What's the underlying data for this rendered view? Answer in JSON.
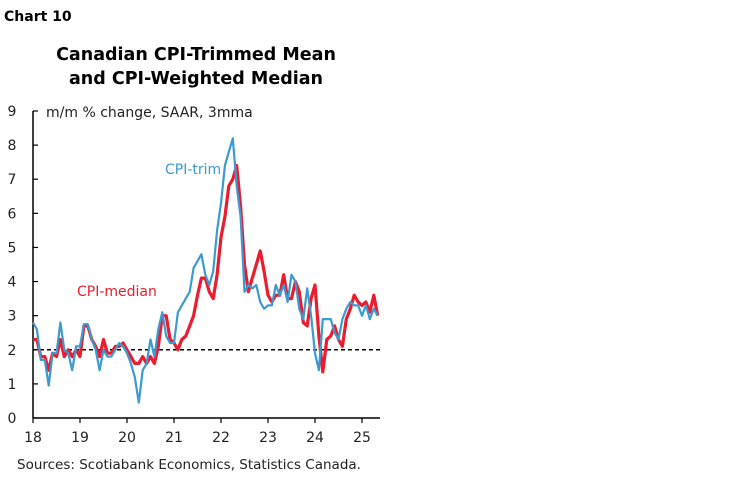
{
  "header": {
    "chart_number": "Chart 10"
  },
  "chart_data": {
    "type": "line",
    "title": "Canadian CPI-Trimmed Mean",
    "subtitle": "and CPI-Weighted Median",
    "ylabel": "m/m % change, SAAR, 3mma",
    "xlabel": "",
    "source": "Sources: Scotiabank Economics, Statistics Canada.",
    "frequency": "monthly",
    "x_start": "2018-01",
    "ylim": [
      0,
      9
    ],
    "yticks": [
      "0",
      "1",
      "2",
      "3",
      "4",
      "5",
      "6",
      "7",
      "8",
      "9"
    ],
    "xticks": [
      "18",
      "19",
      "20",
      "21",
      "22",
      "23",
      "24",
      "25"
    ],
    "reference_line": {
      "y": 2,
      "style": "dashed",
      "color": "#000000"
    },
    "grid": false,
    "series": [
      {
        "name": "CPI-trim",
        "color": "#3b9bd1",
        "values": [
          2.8,
          2.6,
          1.7,
          1.7,
          0.95,
          1.9,
          1.9,
          2.8,
          2.0,
          1.9,
          1.4,
          2.1,
          2.1,
          2.75,
          2.75,
          2.3,
          2.0,
          1.4,
          2.0,
          1.8,
          1.8,
          2.0,
          2.2,
          2.1,
          1.9,
          1.6,
          1.2,
          0.45,
          1.4,
          1.6,
          2.3,
          1.8,
          2.6,
          3.1,
          2.4,
          2.2,
          2.2,
          3.1,
          3.3,
          3.5,
          3.7,
          4.4,
          4.6,
          4.8,
          4.2,
          3.9,
          4.3,
          5.5,
          6.3,
          7.4,
          7.8,
          8.2,
          6.8,
          5.9,
          3.7,
          3.9,
          3.8,
          3.9,
          3.4,
          3.2,
          3.3,
          3.3,
          3.9,
          3.6,
          3.9,
          3.4,
          4.2,
          4.0,
          3.2,
          2.9,
          3.8,
          3.0,
          1.9,
          1.4,
          2.9,
          2.9,
          2.9,
          2.5,
          2.3,
          2.9,
          3.2,
          3.4,
          3.3,
          3.3,
          3.0,
          3.3,
          2.9,
          3.2,
          3.0
        ]
      },
      {
        "name": "CPI-median",
        "color": "#ec1c2e",
        "values": [
          2.3,
          2.3,
          1.8,
          1.8,
          1.4,
          1.9,
          1.8,
          2.3,
          1.8,
          2.0,
          1.8,
          2.0,
          1.8,
          2.7,
          2.7,
          2.3,
          2.1,
          1.8,
          2.3,
          1.9,
          1.9,
          2.1,
          2.1,
          2.2,
          2.0,
          1.8,
          1.6,
          1.6,
          1.8,
          1.6,
          1.8,
          1.6,
          2.1,
          3.0,
          3.0,
          2.3,
          2.2,
          2.0,
          2.3,
          2.4,
          2.7,
          3.0,
          3.6,
          4.1,
          4.1,
          3.7,
          3.5,
          4.2,
          5.3,
          5.9,
          6.8,
          7.0,
          7.4,
          6.2,
          4.5,
          3.7,
          4.1,
          4.5,
          4.9,
          4.3,
          3.6,
          3.4,
          3.6,
          3.6,
          4.2,
          3.5,
          3.5,
          4.0,
          3.7,
          2.8,
          2.7,
          3.5,
          3.9,
          2.4,
          1.35,
          2.3,
          2.4,
          2.7,
          2.3,
          2.1,
          2.9,
          3.2,
          3.6,
          3.4,
          3.3,
          3.4,
          3.1,
          3.6,
          3.0
        ]
      }
    ]
  }
}
